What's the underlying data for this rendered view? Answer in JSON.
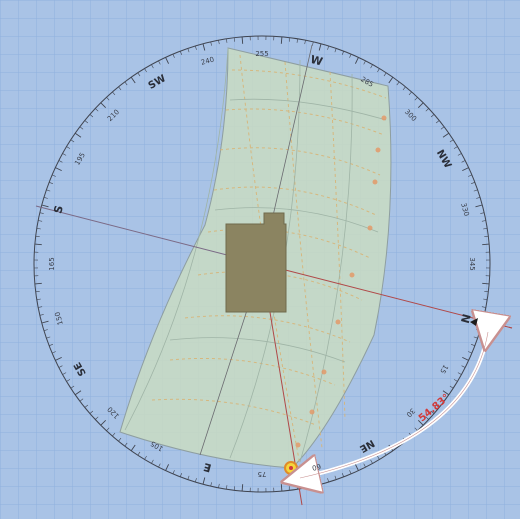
{
  "compass": {
    "cardinals": [
      {
        "key": "W",
        "label": "W",
        "az": 270
      },
      {
        "key": "NW",
        "label": "NW",
        "az": 315
      },
      {
        "key": "N",
        "label": "N",
        "az": 0
      },
      {
        "key": "NE",
        "label": "NE",
        "az": 45
      },
      {
        "key": "E",
        "label": "E",
        "az": 90
      },
      {
        "key": "SE",
        "label": "SE",
        "az": 135
      },
      {
        "key": "S",
        "label": "S",
        "az": 180
      },
      {
        "key": "SW",
        "label": "SW",
        "az": 225
      }
    ],
    "degree_labels": [
      "240",
      "255",
      "285",
      "300",
      "330",
      "345",
      "15",
      "30",
      "60",
      "75",
      "105",
      "120",
      "150",
      "165",
      "195",
      "210"
    ]
  },
  "annotation": {
    "angle_label": "54.83°"
  },
  "colors": {
    "background": "#a9c3e6",
    "grid": "#8fb0de",
    "sunpath_fill": "#c9dcc2",
    "building": "#8b8461",
    "angle_arc": "#ffffff",
    "angle_text": "#d23a3a",
    "north_line": "#b04848"
  }
}
